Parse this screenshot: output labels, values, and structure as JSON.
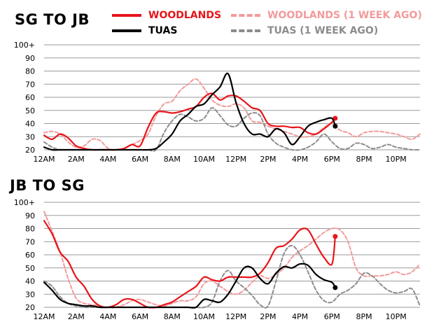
{
  "colors": {
    "woodlands": "#e8141a",
    "woodlands_prev": "#f39a9b",
    "tuas": "#000000",
    "tuas_prev": "#8c8c8c",
    "grid": "#9a9a9a"
  },
  "legend": [
    {
      "label": "WOODLANDS",
      "color": "#e8141a",
      "style": "solid"
    },
    {
      "label": "WOODLANDS (1 WEEK AGO)",
      "color": "#f39a9b",
      "style": "dashed"
    },
    {
      "label": "TUAS",
      "color": "#000000",
      "style": "solid"
    },
    {
      "label": "TUAS (1 WEEK AGO)",
      "color": "#8c8c8c",
      "style": "dashed"
    }
  ],
  "chart_data": [
    {
      "type": "line",
      "title": "SG TO JB",
      "ylim": [
        20,
        100
      ],
      "yticks": [
        "20",
        "30",
        "40",
        "50",
        "60",
        "70",
        "80",
        "90",
        "100+"
      ],
      "xticks": [
        "12AM",
        "2AM",
        "4AM",
        "6AM",
        "8AM",
        "10AM",
        "12PM",
        "2PM",
        "4PM",
        "6PM",
        "8PM",
        "10PM"
      ],
      "xlim": [
        0,
        23.5
      ],
      "grid": true,
      "legend_position": "top-right",
      "series": [
        {
          "name": "WOODLANDS (1 WEEK AGO)",
          "style": "dashed",
          "color": "#f39a9b",
          "x": [
            0,
            0.5,
            1,
            1.5,
            2,
            2.5,
            3,
            3.5,
            4,
            4.5,
            5,
            5.5,
            6,
            6.5,
            7,
            7.5,
            8,
            8.5,
            9,
            9.5,
            10,
            10.5,
            11,
            11.5,
            12,
            12.5,
            13,
            13.5,
            14,
            14.5,
            15,
            15.5,
            16,
            16.5,
            17,
            17.5,
            18,
            18.5,
            19,
            19.5,
            20,
            20.5,
            21,
            21.5,
            22,
            22.5,
            23,
            23.5
          ],
          "y": [
            33,
            34,
            32,
            26,
            22,
            23,
            28,
            27,
            21,
            20,
            21,
            24,
            27,
            32,
            46,
            55,
            57,
            65,
            70,
            74,
            67,
            58,
            54,
            53,
            55,
            52,
            42,
            41,
            38,
            36,
            34,
            32,
            30,
            30,
            32,
            37,
            40,
            35,
            33,
            30,
            33,
            34,
            34,
            33,
            32,
            30,
            28,
            32
          ]
        },
        {
          "name": "TUAS (1 WEEK AGO)",
          "style": "dashed",
          "color": "#8c8c8c",
          "x": [
            0,
            0.5,
            1,
            1.5,
            2,
            2.5,
            3,
            3.5,
            4,
            4.5,
            5,
            5.5,
            6,
            6.5,
            7,
            7.5,
            8,
            8.5,
            9,
            9.5,
            10,
            10.5,
            11,
            11.5,
            12,
            12.5,
            13,
            13.5,
            14,
            14.5,
            15,
            15.5,
            16,
            16.5,
            17,
            17.5,
            18,
            18.5,
            19,
            19.5,
            20,
            20.5,
            21,
            21.5,
            22,
            22.5,
            23,
            23.5
          ],
          "y": [
            26,
            22,
            20,
            20,
            20,
            20,
            20,
            20,
            20,
            20,
            20,
            20,
            20,
            20,
            20,
            33,
            42,
            47,
            45,
            42,
            44,
            52,
            46,
            39,
            38,
            44,
            48,
            46,
            32,
            25,
            22,
            20,
            20,
            22,
            26,
            32,
            26,
            21,
            21,
            25,
            24,
            21,
            22,
            24,
            22,
            21,
            20,
            20
          ]
        },
        {
          "name": "WOODLANDS",
          "style": "solid",
          "color": "#e8141a",
          "x": [
            0,
            0.5,
            1,
            1.5,
            2,
            2.5,
            3,
            3.5,
            4,
            4.5,
            5,
            5.5,
            6,
            6.5,
            7,
            7.5,
            8,
            8.5,
            9,
            9.5,
            10,
            10.5,
            11,
            11.5,
            12,
            12.5,
            13,
            13.5,
            14,
            14.5,
            15,
            15.5,
            16,
            16.5,
            17,
            17.5,
            18,
            18.2
          ],
          "y": [
            31,
            28,
            32,
            29,
            23,
            21,
            20,
            20,
            20,
            20,
            21,
            24,
            23,
            37,
            48,
            49,
            48,
            49,
            51,
            53,
            60,
            63,
            58,
            61,
            61,
            57,
            52,
            50,
            40,
            38,
            38,
            37,
            37,
            33,
            32,
            36,
            41,
            44
          ]
        },
        {
          "name": "TUAS",
          "style": "solid",
          "color": "#000000",
          "x": [
            0,
            0.5,
            1,
            1.5,
            2,
            2.5,
            3,
            3.5,
            4,
            4.5,
            5,
            5.5,
            6,
            6.5,
            7,
            7.5,
            8,
            8.5,
            9,
            9.5,
            10,
            10.5,
            11,
            11.5,
            12,
            12.5,
            13,
            13.5,
            14,
            14.5,
            15,
            15.5,
            16,
            16.5,
            17,
            17.5,
            18,
            18.2
          ],
          "y": [
            22,
            20,
            20,
            20,
            20,
            20,
            20,
            20,
            20,
            20,
            20,
            20,
            20,
            20,
            21,
            26,
            32,
            42,
            47,
            53,
            55,
            62,
            68,
            78,
            56,
            40,
            32,
            32,
            30,
            36,
            33,
            24,
            30,
            38,
            41,
            43,
            44,
            38
          ]
        }
      ]
    },
    {
      "type": "line",
      "title": "JB TO SG",
      "ylim": [
        20,
        100
      ],
      "yticks": [
        "20",
        "30",
        "40",
        "50",
        "60",
        "70",
        "80",
        "90",
        "100+"
      ],
      "xticks": [
        "12AM",
        "2AM",
        "4AM",
        "6AM",
        "8AM",
        "10AM",
        "12PM",
        "2PM",
        "4PM",
        "6PM",
        "8PM",
        "10PM"
      ],
      "xlim": [
        0,
        23.5
      ],
      "grid": true,
      "series": [
        {
          "name": "WOODLANDS (1 WEEK AGO)",
          "style": "dashed",
          "color": "#f39a9b",
          "x": [
            0,
            0.5,
            1,
            1.5,
            2,
            2.5,
            3,
            3.5,
            4,
            4.5,
            5,
            5.5,
            6,
            6.5,
            7,
            7.5,
            8,
            8.5,
            9,
            9.5,
            10,
            10.5,
            11,
            11.5,
            12,
            12.5,
            13,
            13.5,
            14,
            14.5,
            15,
            15.5,
            16,
            16.5,
            17,
            17.5,
            18,
            18.5,
            19,
            19.5,
            20,
            20.5,
            21,
            21.5,
            22,
            22.5,
            23,
            23.5
          ],
          "y": [
            93,
            78,
            62,
            42,
            27,
            23,
            22,
            21,
            20,
            20,
            22,
            25,
            26,
            24,
            22,
            21,
            23,
            25,
            25,
            28,
            38,
            40,
            36,
            32,
            30,
            33,
            39,
            44,
            42,
            45,
            50,
            58,
            63,
            67,
            72,
            77,
            80,
            79,
            70,
            50,
            44,
            44,
            44,
            45,
            47,
            45,
            47,
            53
          ]
        },
        {
          "name": "TUAS (1 WEEK AGO)",
          "style": "dashed",
          "color": "#8c8c8c",
          "x": [
            0,
            0.5,
            1,
            1.5,
            2,
            2.5,
            3,
            3.5,
            4,
            4.5,
            5,
            5.5,
            6,
            6.5,
            7,
            7.5,
            8,
            8.5,
            9,
            9.5,
            10,
            10.5,
            11,
            11.5,
            12,
            12.5,
            13,
            13.5,
            14,
            14.5,
            15,
            15.5,
            16,
            16.5,
            17,
            17.5,
            18,
            18.5,
            19,
            19.5,
            20,
            20.5,
            21,
            21.5,
            22,
            22.5,
            23,
            23.5
          ],
          "y": [
            40,
            36,
            28,
            23,
            21,
            20,
            20,
            20,
            20,
            20,
            20,
            20,
            20,
            20,
            20,
            20,
            20,
            20,
            20,
            20,
            20,
            24,
            40,
            48,
            40,
            35,
            29,
            22,
            21,
            40,
            61,
            67,
            60,
            47,
            33,
            25,
            24,
            30,
            33,
            38,
            46,
            44,
            38,
            33,
            31,
            32,
            34,
            21
          ]
        },
        {
          "name": "WOODLANDS",
          "style": "solid",
          "color": "#e8141a",
          "x": [
            0,
            0.5,
            1,
            1.5,
            2,
            2.5,
            3,
            3.5,
            4,
            4.5,
            5,
            5.5,
            6,
            6.5,
            7,
            7.5,
            8,
            8.5,
            9,
            9.5,
            10,
            10.5,
            11,
            11.5,
            12,
            12.5,
            13,
            13.5,
            14,
            14.5,
            15,
            15.5,
            16,
            16.5,
            17,
            17.5,
            18,
            18.2
          ],
          "y": [
            86,
            76,
            62,
            55,
            43,
            36,
            26,
            21,
            20,
            22,
            26,
            26,
            23,
            20,
            20,
            22,
            24,
            28,
            32,
            36,
            43,
            41,
            40,
            43,
            43,
            43,
            43,
            46,
            54,
            65,
            67,
            72,
            79,
            79,
            68,
            58,
            53,
            74
          ]
        },
        {
          "name": "TUAS",
          "style": "solid",
          "color": "#000000",
          "x": [
            0,
            0.5,
            1,
            1.5,
            2,
            2.5,
            3,
            3.5,
            4,
            4.5,
            5,
            5.5,
            6,
            6.5,
            7,
            7.5,
            8,
            8.5,
            9,
            9.5,
            10,
            10.5,
            11,
            11.5,
            12,
            12.5,
            13,
            13.5,
            14,
            14.5,
            15,
            15.5,
            16,
            16.5,
            17,
            17.5,
            18,
            18.2
          ],
          "y": [
            39,
            33,
            26,
            23,
            22,
            21,
            21,
            20,
            20,
            20,
            20,
            20,
            20,
            20,
            20,
            20,
            20,
            20,
            20,
            20,
            26,
            25,
            24,
            30,
            40,
            50,
            50,
            42,
            38,
            46,
            51,
            50,
            53,
            52,
            45,
            41,
            39,
            35
          ]
        }
      ]
    }
  ]
}
